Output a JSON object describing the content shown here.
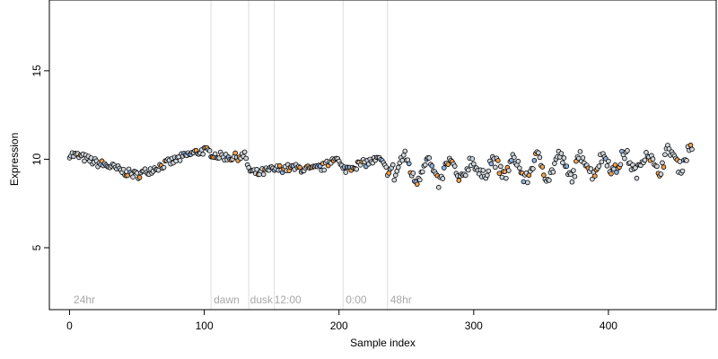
{
  "chart_data": {
    "type": "scatter",
    "title": "",
    "xlabel": "Sample index",
    "ylabel": "Expression",
    "xlim": [
      -15,
      480
    ],
    "ylim": [
      1.5,
      19
    ],
    "x_ticks": [
      0,
      100,
      200,
      300,
      400
    ],
    "y_ticks": [
      5,
      10,
      15
    ],
    "grid": false,
    "legend": "none",
    "colors": {
      "points_fill": "#cfd6dc",
      "points_stroke": "#000000",
      "highlight_orange": "#f0a050",
      "highlight_blue": "#8fb0e0",
      "divider": "#dddddd",
      "region_label": "#a8a8a8"
    },
    "dividers": [
      105,
      133,
      152,
      203,
      236
    ],
    "region_labels": [
      {
        "text": "24hr",
        "x": 3
      },
      {
        "text": "dawn",
        "x": 107
      },
      {
        "text": "dusk",
        "x": 134
      },
      {
        "text": "12:00",
        "x": 152
      },
      {
        "text": "0:00",
        "x": 205
      },
      {
        "text": "48hr",
        "x": 238
      }
    ],
    "series": [
      {
        "x": [
          0,
          10,
          20,
          30,
          40,
          50,
          60,
          70,
          80,
          90,
          100,
          110,
          120,
          130,
          134,
          140,
          150,
          160,
          170,
          180,
          190,
          197,
          203,
          210,
          220,
          230,
          236,
          245,
          255,
          265,
          275,
          285,
          295,
          305,
          315,
          325,
          335,
          345,
          355,
          365,
          375,
          385,
          395,
          405,
          415,
          425,
          435,
          445,
          455,
          465
        ],
        "values": [
          10.3,
          10.1,
          9.8,
          9.6,
          9.3,
          9.1,
          9.4,
          9.7,
          10.0,
          10.3,
          10.5,
          10.2,
          10.1,
          10.2,
          9.3,
          9.2,
          9.4,
          9.5,
          9.5,
          9.4,
          9.6,
          10.2,
          9.4,
          9.6,
          9.8,
          10.0,
          9.3,
          9.8,
          9.3,
          9.5,
          9.2,
          9.4,
          9.3,
          9.6,
          9.4,
          9.7,
          9.3,
          9.6,
          9.5,
          9.7,
          9.5,
          9.8,
          9.6,
          9.9,
          9.7,
          9.9,
          9.8,
          10.0,
          10.1,
          10.2
        ]
      }
    ]
  }
}
